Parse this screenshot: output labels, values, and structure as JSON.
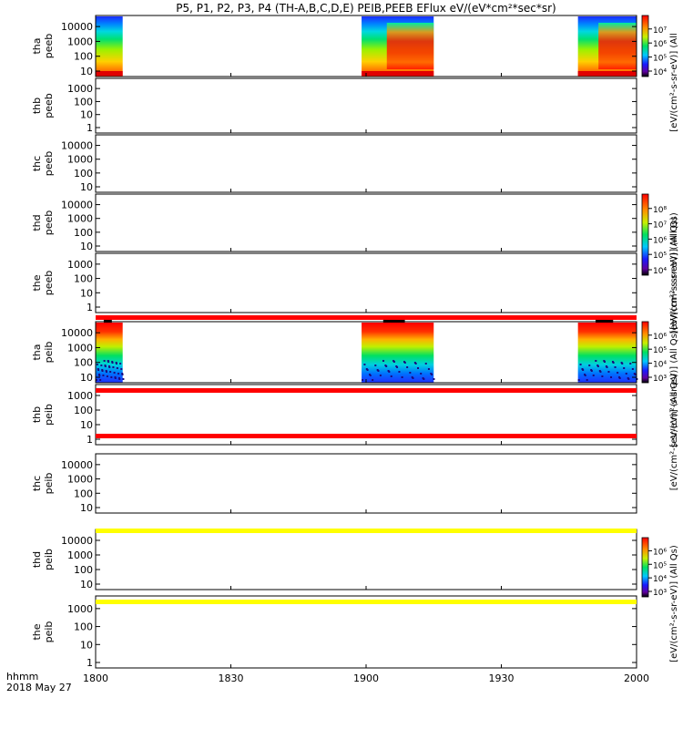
{
  "chart_data": {
    "type": "heatmap",
    "title": "P5, P1, P2, P3, P4 (TH-A,B,C,D,E) PEIB,PEEB EFlux eV/(eV*cm²*sec*sr)",
    "x_ticks": [
      "1800",
      "1830",
      "1900",
      "1930",
      "2000"
    ],
    "x_range": [
      "18:00",
      "20:00"
    ],
    "xlabel_left": "hhmm",
    "date_label": "2018 May 27",
    "panels": [
      {
        "id": "tha-peeb",
        "label1": "tha",
        "label2": "peeb",
        "yscale": "log",
        "yticks": [
          "10",
          "100",
          "1000",
          "10000"
        ],
        "data_intervals": [
          {
            "start": "18:00",
            "end": "18:06"
          },
          {
            "start": "18:59",
            "end": "19:15"
          },
          {
            "start": "19:47",
            "end": "20:00"
          }
        ]
      },
      {
        "id": "thb-peeb",
        "label1": "thb",
        "label2": "peeb",
        "yscale": "log",
        "yticks": [
          "1",
          "10",
          "100",
          "1000"
        ],
        "data_intervals": []
      },
      {
        "id": "thc-peeb",
        "label1": "thc",
        "label2": "peeb",
        "yscale": "log",
        "yticks": [
          "10",
          "100",
          "1000",
          "10000"
        ],
        "data_intervals": []
      },
      {
        "id": "thd-peeb",
        "label1": "thd",
        "label2": "peeb",
        "yscale": "log",
        "yticks": [
          "10",
          "100",
          "1000",
          "10000"
        ],
        "data_intervals": []
      },
      {
        "id": "the-peeb",
        "label1": "the",
        "label2": "peeb",
        "yscale": "log",
        "yticks": [
          "1",
          "10",
          "100",
          "1000"
        ],
        "data_intervals": []
      },
      {
        "id": "tha-peib",
        "label1": "tha",
        "label2": "peib",
        "yscale": "log",
        "yticks": [
          "10",
          "100",
          "1000",
          "10000"
        ],
        "data_intervals": [
          {
            "start": "18:00",
            "end": "18:06"
          },
          {
            "start": "18:59",
            "end": "19:15"
          },
          {
            "start": "19:47",
            "end": "20:00"
          }
        ]
      },
      {
        "id": "thb-peib",
        "label1": "thb",
        "label2": "peib",
        "yscale": "log",
        "yticks": [
          "1",
          "10",
          "100",
          "1000"
        ],
        "data_intervals": []
      },
      {
        "id": "thc-peib",
        "label1": "thc",
        "label2": "peib",
        "yscale": "log",
        "yticks": [
          "10",
          "100",
          "1000",
          "10000"
        ],
        "data_intervals": []
      },
      {
        "id": "thd-peib",
        "label1": "thd",
        "label2": "peib",
        "yscale": "log",
        "yticks": [
          "10",
          "100",
          "1000",
          "10000"
        ],
        "data_intervals": []
      },
      {
        "id": "the-peib",
        "label1": "the",
        "label2": "peib",
        "yscale": "log",
        "yticks": [
          "1",
          "10",
          "100",
          "1000"
        ],
        "data_intervals": []
      }
    ],
    "colorbars": [
      {
        "id": "cb-electrons-a",
        "ticks": [
          "10⁴",
          "10⁵",
          "10⁶",
          "10⁷"
        ],
        "label": "[eV/(cm²-s-sr-eV)] (All"
      },
      {
        "id": "cb-electrons-d",
        "ticks": [
          "10⁴",
          "10⁵",
          "10⁶",
          "10⁷",
          "10⁸"
        ],
        "label": "[eV/(cm²-s-sr-eV)] (All Qs)"
      },
      {
        "id": "cb-ions-a",
        "ticks": [
          "10³",
          "10⁴",
          "10⁵",
          "10⁶"
        ],
        "label": "[eV/(cm²-s-sr-eV)] (All Qs)"
      },
      {
        "id": "cb-ions-d",
        "ticks": [
          "10³",
          "10⁴",
          "10⁵",
          "10⁶"
        ],
        "label": "[eV/(cm²-s-sr-eV)] (All Qs)"
      }
    ],
    "overlapping_label_fragments": [
      "[eV/(cm²-s-sr-eV)] (All Qs)",
      "[eV/(cm²-s-sr-eV)] (All Qs)"
    ],
    "status_bars": [
      {
        "after_panel": "the-peeb",
        "color": "#ff0000"
      },
      {
        "after_panel": "tha-peib",
        "color": "#ff0000"
      },
      {
        "after_panel": "thb-peib",
        "color": "#ff0000"
      },
      {
        "after_panel": "thc-peib",
        "color": "#ffff00"
      },
      {
        "after_panel": "thd-peib",
        "color": "#ffff00"
      }
    ]
  }
}
